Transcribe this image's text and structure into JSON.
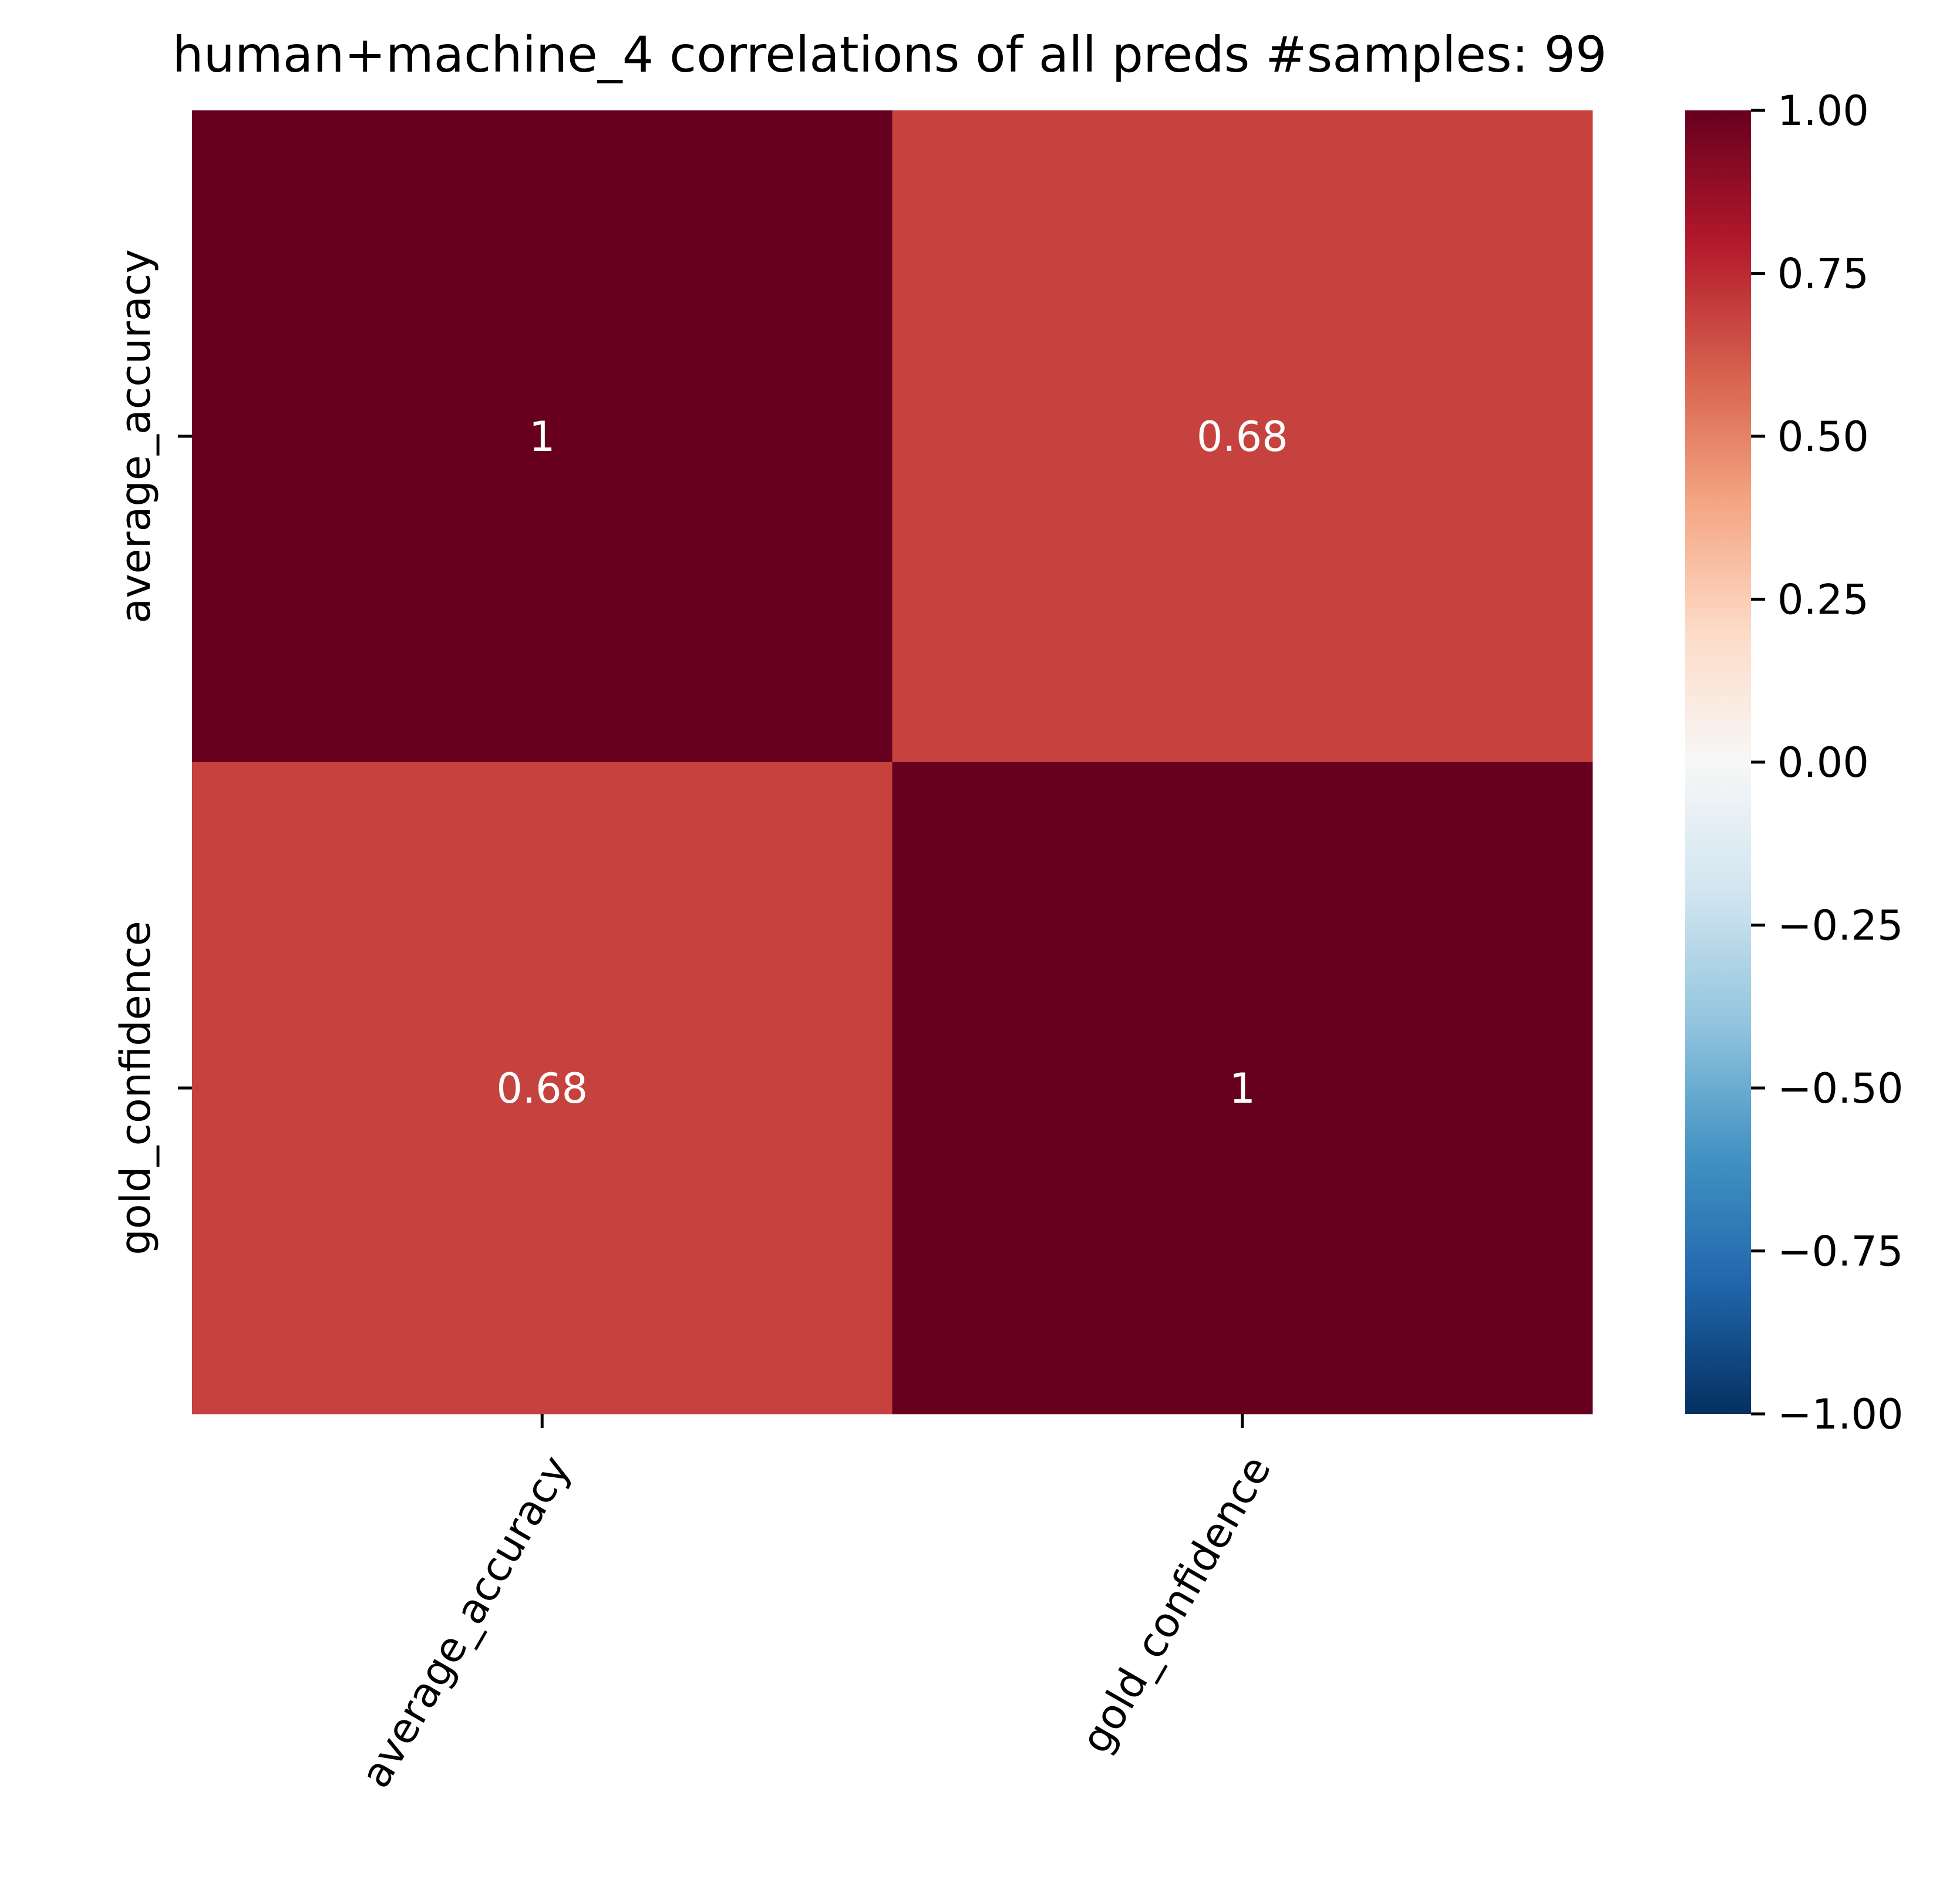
{
  "chart_data": {
    "type": "heatmap",
    "title": "human+machine_4 correlations of all preds #samples: 99",
    "row_labels": [
      "average_accuracy",
      "gold_confidence"
    ],
    "column_labels": [
      "average_accuracy",
      "gold_confidence"
    ],
    "values": [
      [
        1.0,
        0.68
      ],
      [
        0.68,
        1.0
      ]
    ],
    "annotations": [
      [
        "1",
        "0.68"
      ],
      [
        "0.68",
        "1"
      ]
    ],
    "colorscale": "RdBu_r",
    "colorbar": {
      "range": [
        -1.0,
        1.0
      ],
      "ticks": [
        1.0,
        0.75,
        0.5,
        0.25,
        0.0,
        -0.25,
        -0.5,
        -0.75,
        -1.0
      ],
      "tick_labels": [
        "1.00",
        "0.75",
        "0.50",
        "0.25",
        "0.00",
        "−0.25",
        "−0.50",
        "−0.75",
        "−1.00"
      ]
    },
    "colors": {
      "value_1": "#67001f",
      "value_068": "#c6423e",
      "annotation_text": "#ffffff"
    },
    "xlabel": "",
    "ylabel": ""
  }
}
